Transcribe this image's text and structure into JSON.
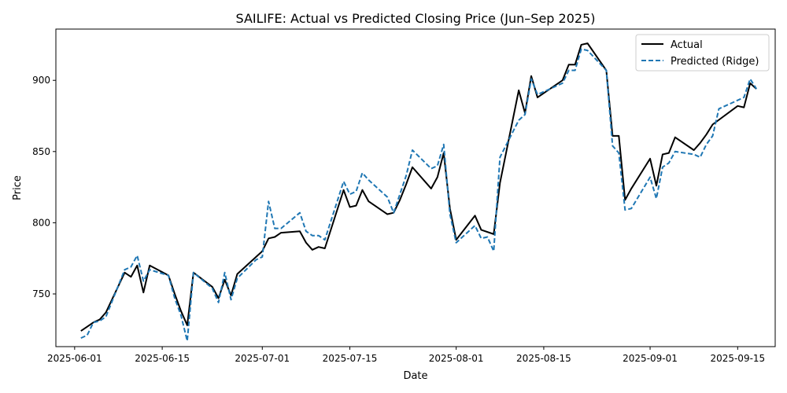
{
  "chart_data": {
    "type": "line",
    "title": "SAILIFE: Actual vs Predicted Closing Price (Jun–Sep 2025)",
    "xlabel": "Date",
    "ylabel": "Price",
    "xlim": [
      "2025-05-29",
      "2025-09-21"
    ],
    "ylim": [
      713,
      936
    ],
    "x_ticks": [
      "2025-06-01",
      "2025-06-15",
      "2025-07-01",
      "2025-07-15",
      "2025-08-01",
      "2025-08-15",
      "2025-09-01",
      "2025-09-15"
    ],
    "y_ticks": [
      750,
      800,
      850,
      900
    ],
    "grid": false,
    "legend_position": "upper right",
    "series": [
      {
        "name": "Actual",
        "color": "#000000",
        "style": "solid",
        "points": [
          [
            "2025-06-02",
            724
          ],
          [
            "2025-06-03",
            727
          ],
          [
            "2025-06-04",
            730
          ],
          [
            "2025-06-05",
            732
          ],
          [
            "2025-06-06",
            737
          ],
          [
            "2025-06-09",
            765
          ],
          [
            "2025-06-10",
            762
          ],
          [
            "2025-06-11",
            770
          ],
          [
            "2025-06-12",
            751
          ],
          [
            "2025-06-13",
            770
          ],
          [
            "2025-06-16",
            763
          ],
          [
            "2025-06-17",
            750
          ],
          [
            "2025-06-18",
            738
          ],
          [
            "2025-06-19",
            728
          ],
          [
            "2025-06-20",
            765
          ],
          [
            "2025-06-23",
            755
          ],
          [
            "2025-06-24",
            747
          ],
          [
            "2025-06-25",
            760
          ],
          [
            "2025-06-26",
            749
          ],
          [
            "2025-06-27",
            764
          ],
          [
            "2025-06-30",
            776
          ],
          [
            "2025-07-01",
            780
          ],
          [
            "2025-07-02",
            789
          ],
          [
            "2025-07-03",
            790
          ],
          [
            "2025-07-04",
            793
          ],
          [
            "2025-07-07",
            794
          ],
          [
            "2025-07-08",
            786
          ],
          [
            "2025-07-09",
            781
          ],
          [
            "2025-07-10",
            783
          ],
          [
            "2025-07-11",
            782
          ],
          [
            "2025-07-14",
            823
          ],
          [
            "2025-07-15",
            811
          ],
          [
            "2025-07-16",
            812
          ],
          [
            "2025-07-17",
            823
          ],
          [
            "2025-07-18",
            815
          ],
          [
            "2025-07-21",
            806
          ],
          [
            "2025-07-22",
            807
          ],
          [
            "2025-07-23",
            816
          ],
          [
            "2025-07-24",
            827
          ],
          [
            "2025-07-25",
            839
          ],
          [
            "2025-07-28",
            824
          ],
          [
            "2025-07-29",
            832
          ],
          [
            "2025-07-30",
            849
          ],
          [
            "2025-07-31",
            810
          ],
          [
            "2025-08-01",
            788
          ],
          [
            "2025-08-04",
            805
          ],
          [
            "2025-08-05",
            795
          ],
          [
            "2025-08-07",
            792
          ],
          [
            "2025-08-08",
            828
          ],
          [
            "2025-08-11",
            893
          ],
          [
            "2025-08-12",
            877
          ],
          [
            "2025-08-13",
            903
          ],
          [
            "2025-08-14",
            888
          ],
          [
            "2025-08-18",
            900
          ],
          [
            "2025-08-19",
            911
          ],
          [
            "2025-08-20",
            911
          ],
          [
            "2025-08-21",
            925
          ],
          [
            "2025-08-22",
            926
          ],
          [
            "2025-08-25",
            907
          ],
          [
            "2025-08-26",
            861
          ],
          [
            "2025-08-27",
            861
          ],
          [
            "2025-08-28",
            816
          ],
          [
            "2025-08-29",
            824
          ],
          [
            "2025-09-01",
            845
          ],
          [
            "2025-09-02",
            826
          ],
          [
            "2025-09-03",
            848
          ],
          [
            "2025-09-04",
            849
          ],
          [
            "2025-09-05",
            860
          ],
          [
            "2025-09-08",
            851
          ],
          [
            "2025-09-09",
            856
          ],
          [
            "2025-09-10",
            862
          ],
          [
            "2025-09-11",
            869
          ],
          [
            "2025-09-15",
            882
          ],
          [
            "2025-09-16",
            881
          ],
          [
            "2025-09-17",
            898
          ],
          [
            "2025-09-18",
            894
          ]
        ]
      },
      {
        "name": "Predicted (Ridge)",
        "color": "#1f77b4",
        "style": "dashed",
        "points": [
          [
            "2025-06-02",
            719
          ],
          [
            "2025-06-03",
            721
          ],
          [
            "2025-06-04",
            730
          ],
          [
            "2025-06-05",
            731
          ],
          [
            "2025-06-06",
            734
          ],
          [
            "2025-06-09",
            767
          ],
          [
            "2025-06-10",
            769
          ],
          [
            "2025-06-11",
            777
          ],
          [
            "2025-06-12",
            759
          ],
          [
            "2025-06-13",
            767
          ],
          [
            "2025-06-16",
            763
          ],
          [
            "2025-06-17",
            747
          ],
          [
            "2025-06-18",
            735
          ],
          [
            "2025-06-19",
            717
          ],
          [
            "2025-06-20",
            765
          ],
          [
            "2025-06-23",
            754
          ],
          [
            "2025-06-24",
            744
          ],
          [
            "2025-06-25",
            765
          ],
          [
            "2025-06-26",
            746
          ],
          [
            "2025-06-27",
            761
          ],
          [
            "2025-06-30",
            774
          ],
          [
            "2025-07-01",
            776
          ],
          [
            "2025-07-02",
            815
          ],
          [
            "2025-07-03",
            796
          ],
          [
            "2025-07-04",
            796
          ],
          [
            "2025-07-07",
            807
          ],
          [
            "2025-07-08",
            794
          ],
          [
            "2025-07-09",
            791
          ],
          [
            "2025-07-10",
            791
          ],
          [
            "2025-07-11",
            788
          ],
          [
            "2025-07-14",
            829
          ],
          [
            "2025-07-15",
            820
          ],
          [
            "2025-07-16",
            822
          ],
          [
            "2025-07-17",
            835
          ],
          [
            "2025-07-18",
            830
          ],
          [
            "2025-07-21",
            818
          ],
          [
            "2025-07-22",
            807
          ],
          [
            "2025-07-23",
            820
          ],
          [
            "2025-07-24",
            833
          ],
          [
            "2025-07-25",
            851
          ],
          [
            "2025-07-28",
            838
          ],
          [
            "2025-07-29",
            840
          ],
          [
            "2025-07-30",
            855
          ],
          [
            "2025-07-31",
            806
          ],
          [
            "2025-08-01",
            786
          ],
          [
            "2025-08-04",
            798
          ],
          [
            "2025-08-05",
            789
          ],
          [
            "2025-08-06",
            790
          ],
          [
            "2025-08-07",
            780
          ],
          [
            "2025-08-08",
            846
          ],
          [
            "2025-08-11",
            872
          ],
          [
            "2025-08-12",
            876
          ],
          [
            "2025-08-13",
            901
          ],
          [
            "2025-08-14",
            890
          ],
          [
            "2025-08-18",
            898
          ],
          [
            "2025-08-19",
            907
          ],
          [
            "2025-08-20",
            907
          ],
          [
            "2025-08-21",
            922
          ],
          [
            "2025-08-22",
            921
          ],
          [
            "2025-08-25",
            907
          ],
          [
            "2025-08-26",
            854
          ],
          [
            "2025-08-27",
            849
          ],
          [
            "2025-08-28",
            809
          ],
          [
            "2025-08-29",
            810
          ],
          [
            "2025-09-01",
            832
          ],
          [
            "2025-09-02",
            817
          ],
          [
            "2025-09-03",
            839
          ],
          [
            "2025-09-04",
            842
          ],
          [
            "2025-09-05",
            850
          ],
          [
            "2025-09-08",
            848
          ],
          [
            "2025-09-09",
            846
          ],
          [
            "2025-09-10",
            855
          ],
          [
            "2025-09-11",
            861
          ],
          [
            "2025-09-12",
            880
          ],
          [
            "2025-09-15",
            886
          ],
          [
            "2025-09-16",
            888
          ],
          [
            "2025-09-17",
            901
          ],
          [
            "2025-09-18",
            894
          ]
        ]
      }
    ]
  }
}
